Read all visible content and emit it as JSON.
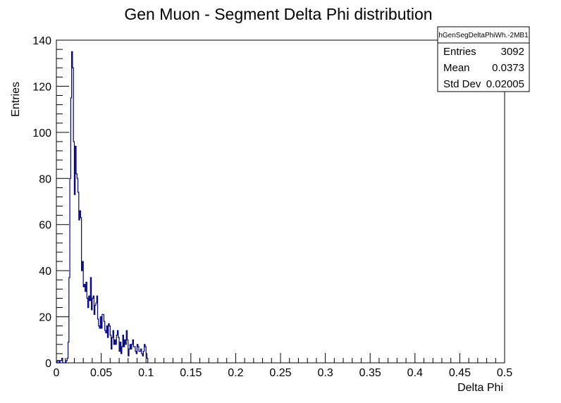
{
  "chart_data": {
    "type": "histogram",
    "title": "Gen Muon - Segment Delta Phi distribution",
    "xlabel": "Delta Phi",
    "ylabel": "Entries",
    "xlim": [
      0,
      0.5
    ],
    "ylim": [
      0,
      140
    ],
    "x_ticks": [
      0,
      0.05,
      0.1,
      0.15,
      0.2,
      0.25,
      0.3,
      0.35,
      0.4,
      0.45,
      0.5
    ],
    "x_tick_labels": [
      "0",
      "0.05",
      "0.1",
      "0.15",
      "0.2",
      "0.25",
      "0.3",
      "0.35",
      "0.4",
      "0.45",
      "0.5"
    ],
    "y_ticks": [
      0,
      20,
      40,
      60,
      80,
      100,
      120,
      140
    ],
    "y_tick_labels": [
      "0",
      "20",
      "40",
      "60",
      "80",
      "100",
      "120",
      "140"
    ],
    "grid": false,
    "line_color": "#000080",
    "bin_width": 0.001,
    "bins_x_start": 0,
    "values": [
      0,
      1,
      1,
      0,
      1,
      1,
      2,
      0,
      0,
      0,
      0,
      1,
      2,
      9,
      37,
      80,
      115,
      135,
      128,
      96,
      73,
      94,
      82,
      80,
      74,
      62,
      66,
      63,
      40,
      44,
      33,
      34,
      31,
      35,
      28,
      24,
      29,
      27,
      37,
      23,
      28,
      29,
      21,
      25,
      26,
      29,
      19,
      16,
      15,
      20,
      15,
      21,
      21,
      18,
      14,
      13,
      16,
      11,
      17,
      16,
      12,
      6,
      11,
      14,
      8,
      10,
      8,
      12,
      14,
      11,
      5,
      9,
      4,
      7,
      12,
      7,
      10,
      8,
      14,
      10,
      3,
      6,
      8,
      6,
      8,
      10,
      7,
      7,
      5,
      4,
      8,
      7,
      5,
      5,
      6,
      4,
      3,
      5,
      8,
      7,
      4,
      2
    ],
    "stats_box": {
      "name": "hGenSegDeltaPhiWh.-2MB1",
      "rows": [
        {
          "label": "Entries",
          "value": "3092"
        },
        {
          "label": "Mean",
          "value": "0.0373"
        },
        {
          "label": "Std Dev",
          "value": "0.02005"
        }
      ]
    }
  }
}
